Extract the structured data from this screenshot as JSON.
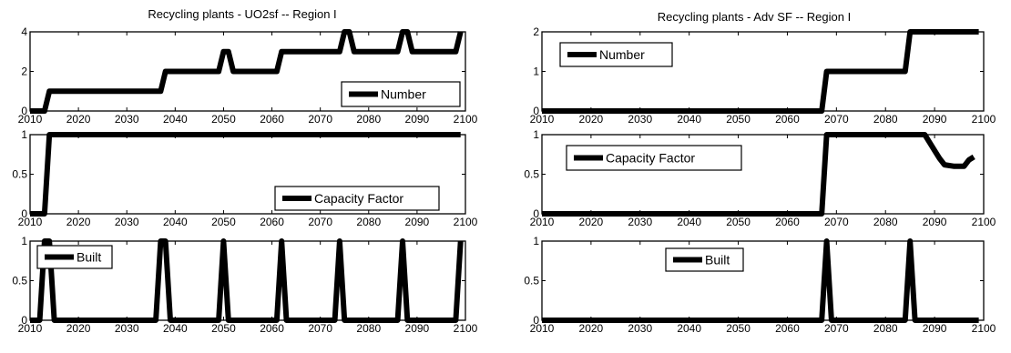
{
  "figure": {
    "columns": [
      {
        "title": "Recycling plants - UO2sf -- Region I"
      },
      {
        "title": "Recycling plants - Adv SF -- Region I"
      }
    ]
  },
  "chart_data": [
    {
      "type": "line",
      "column": 0,
      "row": 0,
      "title": "Recycling plants - UO2sf -- Region I",
      "xlim": [
        2010,
        2100
      ],
      "ylim": [
        0,
        4
      ],
      "xticks": [
        2010,
        2020,
        2030,
        2040,
        2050,
        2060,
        2070,
        2080,
        2090,
        2100
      ],
      "yticks": [
        0,
        2,
        4
      ],
      "legend": {
        "position": "bottom-right"
      },
      "series": [
        {
          "name": "Number",
          "x": [
            2010,
            2013,
            2014,
            2037,
            2038,
            2049,
            2050,
            2051,
            2052,
            2061,
            2062,
            2074,
            2075,
            2076,
            2077,
            2086,
            2087,
            2088,
            2089,
            2098,
            2099
          ],
          "y": [
            0,
            0,
            1,
            1,
            2,
            2,
            3,
            3,
            2,
            2,
            3,
            3,
            4,
            4,
            3,
            3,
            4,
            4,
            3,
            3,
            4
          ]
        }
      ]
    },
    {
      "type": "line",
      "column": 0,
      "row": 1,
      "xlim": [
        2010,
        2100
      ],
      "ylim": [
        0,
        1
      ],
      "xticks": [
        2010,
        2020,
        2030,
        2040,
        2050,
        2060,
        2070,
        2080,
        2090,
        2100
      ],
      "yticks": [
        0,
        0.5,
        1
      ],
      "legend": {
        "position": "bottom-right"
      },
      "series": [
        {
          "name": "Capacity Factor",
          "x": [
            2010,
            2013,
            2014,
            2099
          ],
          "y": [
            0,
            0,
            1,
            1
          ]
        }
      ]
    },
    {
      "type": "line",
      "column": 0,
      "row": 2,
      "xlim": [
        2010,
        2100
      ],
      "ylim": [
        0,
        1
      ],
      "xticks": [
        2010,
        2020,
        2030,
        2040,
        2050,
        2060,
        2070,
        2080,
        2090,
        2100
      ],
      "yticks": [
        0,
        0.5,
        1
      ],
      "legend": {
        "position": "top-left"
      },
      "series": [
        {
          "name": "Built",
          "x": [
            2010,
            2012,
            2013,
            2014,
            2015,
            2036,
            2037,
            2038,
            2039,
            2049,
            2050,
            2051,
            2061,
            2062,
            2063,
            2073,
            2074,
            2075,
            2086,
            2087,
            2088,
            2098,
            2099
          ],
          "y": [
            0,
            0,
            1,
            1,
            0,
            0,
            1,
            1,
            0,
            0,
            1,
            0,
            0,
            1,
            0,
            0,
            1,
            0,
            0,
            1,
            0,
            0,
            1
          ]
        }
      ]
    },
    {
      "type": "line",
      "column": 1,
      "row": 0,
      "title": "Recycling plants - Adv SF -- Region I",
      "xlim": [
        2010,
        2100
      ],
      "ylim": [
        0,
        2
      ],
      "xticks": [
        2010,
        2020,
        2030,
        2040,
        2050,
        2060,
        2070,
        2080,
        2090,
        2100
      ],
      "yticks": [
        0,
        1,
        2
      ],
      "legend": {
        "position": "top-left"
      },
      "series": [
        {
          "name": "Number",
          "x": [
            2010,
            2067,
            2068,
            2084,
            2085,
            2099
          ],
          "y": [
            0,
            0,
            1,
            1,
            2,
            2
          ]
        }
      ]
    },
    {
      "type": "line",
      "column": 1,
      "row": 1,
      "xlim": [
        2010,
        2100
      ],
      "ylim": [
        0,
        1
      ],
      "xticks": [
        2010,
        2020,
        2030,
        2040,
        2050,
        2060,
        2070,
        2080,
        2090,
        2100
      ],
      "yticks": [
        0,
        0.5,
        1
      ],
      "legend": {
        "position": "top-left"
      },
      "series": [
        {
          "name": "Capacity Factor",
          "x": [
            2010,
            2067,
            2068,
            2088,
            2089,
            2090,
            2091,
            2092,
            2094,
            2096,
            2097,
            2098
          ],
          "y": [
            0,
            0,
            1,
            1,
            0.9,
            0.8,
            0.7,
            0.62,
            0.6,
            0.6,
            0.68,
            0.72
          ]
        }
      ]
    },
    {
      "type": "line",
      "column": 1,
      "row": 2,
      "xlim": [
        2010,
        2100
      ],
      "ylim": [
        0,
        1
      ],
      "xticks": [
        2010,
        2020,
        2030,
        2040,
        2050,
        2060,
        2070,
        2080,
        2090,
        2100
      ],
      "yticks": [
        0,
        0.5,
        1
      ],
      "legend": {
        "position": "top-center"
      },
      "series": [
        {
          "name": "Built",
          "x": [
            2010,
            2067,
            2068,
            2069,
            2084,
            2085,
            2086,
            2099
          ],
          "y": [
            0,
            0,
            1,
            0,
            0,
            1,
            0,
            0
          ]
        }
      ]
    }
  ]
}
